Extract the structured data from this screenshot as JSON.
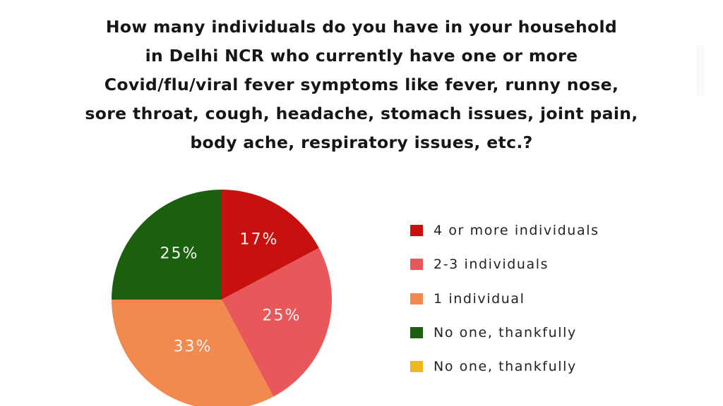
{
  "title": {
    "lines": [
      "How many individuals do you have in your household",
      "in Delhi NCR who currently have one or more",
      "Covid/flu/viral fever symptoms like fever, runny nose,",
      "sore throat, cough, headache, stomach issues, joint pain,",
      "body ache, respiratory issues, etc.?"
    ]
  },
  "legend": {
    "items": [
      {
        "label": "4 or more individuals",
        "color": "#C8100E"
      },
      {
        "label": "2-3 individuals",
        "color": "#E8585A"
      },
      {
        "label": "1 individual",
        "color": "#F28A50"
      },
      {
        "label": "No one, thankfully",
        "color": "#1B600E"
      },
      {
        "label": "No one, thankfully",
        "color": "#F0B81C"
      }
    ]
  },
  "slice_labels": {
    "four_or_more": "17%",
    "two_three": "25%",
    "one": "33%",
    "no_one": "25%"
  },
  "chart_data": {
    "type": "pie",
    "title": "How many individuals do you have in your household in Delhi NCR who currently have one or more Covid/flu/viral fever symptoms like fever, runny nose, sore throat, cough, headache, stomach issues, joint pain, body ache, respiratory issues, etc.?",
    "categories": [
      "4 or more individuals",
      "2-3 individuals",
      "1 individual",
      "No one, thankfully",
      "No one, thankfully"
    ],
    "values": [
      17,
      25,
      33,
      25,
      0
    ],
    "value_labels": [
      "17%",
      "25%",
      "33%",
      "25%",
      ""
    ],
    "colors": [
      "#C8100E",
      "#E8585A",
      "#F28A50",
      "#1B600E",
      "#F0B81C"
    ],
    "unit": "%",
    "start_angle": "12 o'clock, clockwise",
    "legend_position": "right"
  }
}
